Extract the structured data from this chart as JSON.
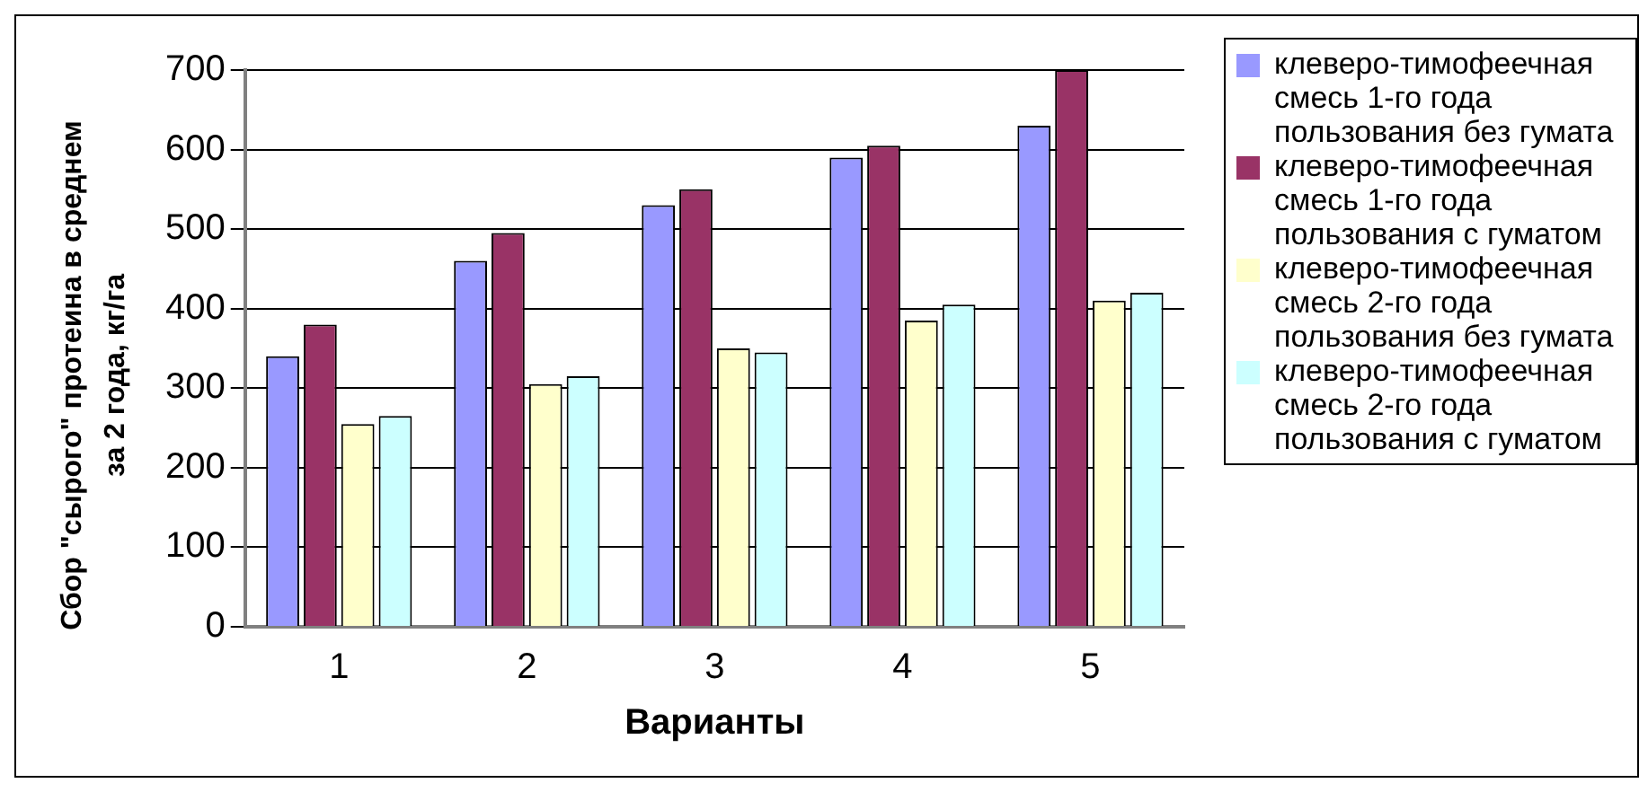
{
  "chart_data": {
    "type": "bar",
    "xlabel": "Варианты",
    "ylabel": "Сбор \"сырого\" протеина в среднем за 2 года, кг/га",
    "categories": [
      "1",
      "2",
      "3",
      "4",
      "5"
    ],
    "series": [
      {
        "name": "клеверо-тимофеечная смесь 1-го года пользования без гумата",
        "color": "#9999ff",
        "values": [
          340,
          460,
          530,
          590,
          630
        ]
      },
      {
        "name": "клеверо-тимофеечная смесь 1-го года пользования с гуматом",
        "color": "#993366",
        "values": [
          380,
          495,
          550,
          605,
          700
        ]
      },
      {
        "name": "клеверо-тимофеечная смесь 2-го года пользования без гумата",
        "color": "#ffffcc",
        "values": [
          255,
          305,
          350,
          385,
          410
        ]
      },
      {
        "name": "клеверо-тимофеечная смесь 2-го года пользования с гуматом",
        "color": "#ccffff",
        "values": [
          265,
          315,
          345,
          405,
          420
        ]
      }
    ],
    "ylim": [
      0,
      700
    ],
    "yticks": [
      0,
      100,
      200,
      300,
      400,
      500,
      600,
      700
    ],
    "grid": "y",
    "legend": "right"
  }
}
